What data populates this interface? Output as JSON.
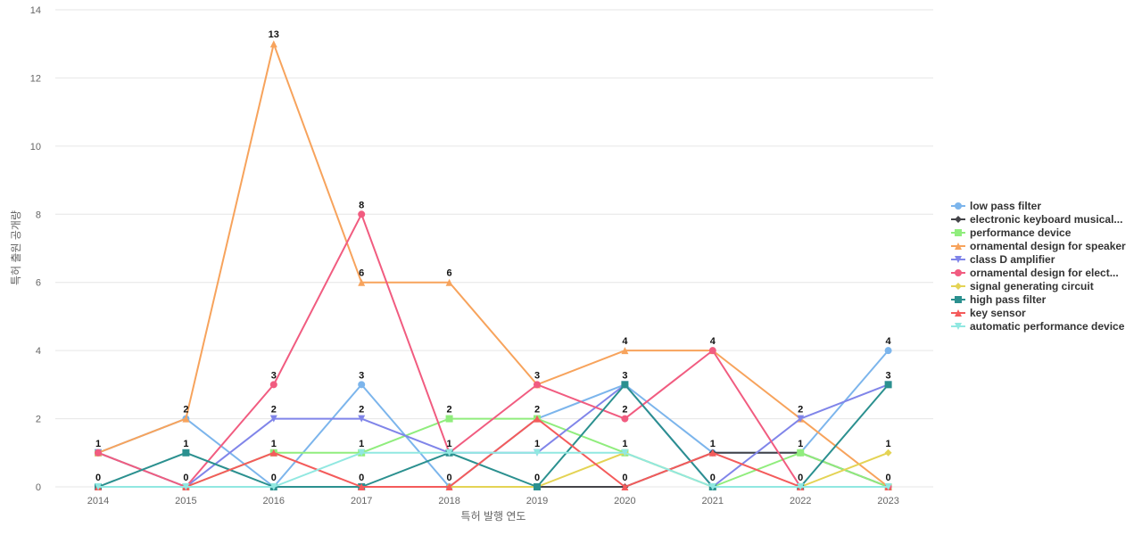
{
  "chart_data": {
    "type": "line",
    "title": "",
    "xlabel": "특허 발행 연도",
    "ylabel": "특허 출원 공개량",
    "x": [
      "2014",
      "2015",
      "2016",
      "2017",
      "2018",
      "2019",
      "2020",
      "2021",
      "2022",
      "2023"
    ],
    "ylim": [
      0,
      14
    ],
    "yticks": [
      0,
      2,
      4,
      6,
      8,
      10,
      12,
      14
    ],
    "grid": true,
    "legend_position": "right",
    "series": [
      {
        "name": "low pass filter",
        "color": "#7cb5ec",
        "marker": "circle",
        "values": [
          1,
          2,
          0,
          3,
          0,
          2,
          3,
          1,
          1,
          4
        ]
      },
      {
        "name": "electronic keyboard musical...",
        "color": "#434348",
        "marker": "diamond",
        "values": [
          0,
          0,
          0,
          0,
          0,
          0,
          0,
          1,
          1,
          0
        ]
      },
      {
        "name": "performance device",
        "color": "#90ed7d",
        "marker": "square",
        "values": [
          1,
          0,
          1,
          1,
          2,
          2,
          1,
          0,
          1,
          0
        ]
      },
      {
        "name": "ornamental design for speaker",
        "color": "#f7a35c",
        "marker": "triangle",
        "values": [
          1,
          2,
          13,
          6,
          6,
          3,
          4,
          4,
          2,
          0
        ]
      },
      {
        "name": "class D amplifier",
        "color": "#8085e9",
        "marker": "triangle-down",
        "values": [
          1,
          0,
          2,
          2,
          1,
          1,
          3,
          0,
          2,
          3
        ]
      },
      {
        "name": "ornamental design for elect...",
        "color": "#f15c80",
        "marker": "circle",
        "values": [
          1,
          0,
          3,
          8,
          1,
          3,
          2,
          4,
          0,
          0
        ]
      },
      {
        "name": "signal generating circuit",
        "color": "#e4d354",
        "marker": "diamond",
        "values": [
          0,
          0,
          0,
          0,
          0,
          0,
          1,
          0,
          0,
          1
        ]
      },
      {
        "name": "high pass filter",
        "color": "#2b908f",
        "marker": "square",
        "values": [
          0,
          1,
          0,
          0,
          1,
          0,
          3,
          0,
          0,
          3
        ]
      },
      {
        "name": "key sensor",
        "color": "#f45b5b",
        "marker": "triangle",
        "values": [
          0,
          0,
          1,
          0,
          0,
          2,
          0,
          1,
          0,
          0
        ]
      },
      {
        "name": "automatic performance device",
        "color": "#91e8e1",
        "marker": "triangle-down",
        "values": [
          0,
          0,
          0,
          1,
          1,
          1,
          1,
          0,
          0,
          0
        ]
      }
    ],
    "data_labels": [
      {
        "x": "2014",
        "top": 1,
        "bottom": 0
      },
      {
        "x": "2015",
        "top": 2,
        "mid": 1,
        "bottom": 0
      },
      {
        "x": "2016",
        "top": 13,
        "mid": 3,
        "second": 2,
        "third": 1,
        "bottom": 0
      },
      {
        "x": "2017",
        "top": 8,
        "mid": 6,
        "second": 3,
        "third": 2,
        "fourth": 1,
        "bottom": 0
      },
      {
        "x": "2018",
        "top": 6,
        "mid": 2,
        "second": 1,
        "bottom": 0
      },
      {
        "x": "2019",
        "top": 3,
        "mid": 2,
        "second": 1,
        "bottom": 0
      },
      {
        "x": "2020",
        "top": 4,
        "mid": 3,
        "second": 2,
        "third": 1,
        "bottom": 0
      },
      {
        "x": "2021",
        "top": 4,
        "mid": 1,
        "bottom": 0
      },
      {
        "x": "2022",
        "top": 2,
        "mid": 1,
        "bottom": 0
      },
      {
        "x": "2023",
        "top": 4,
        "mid": 3,
        "second": 1,
        "bottom": 0
      }
    ]
  }
}
